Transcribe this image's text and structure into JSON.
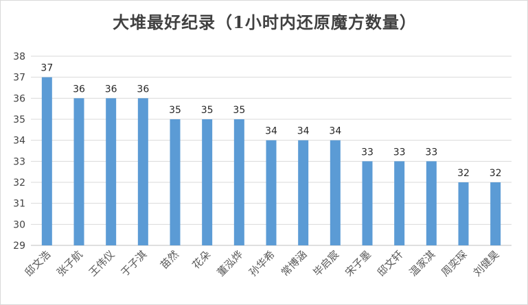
{
  "chart_data": {
    "type": "bar",
    "title": "大堆最好纪录（1小时内还原魔方数量）",
    "xlabel": "",
    "ylabel": "",
    "categories": [
      "邸文浩",
      "张子航",
      "王伟仪",
      "于子淇",
      "苗然",
      "花朵",
      "董泓烨",
      "孙华希",
      "常博涵",
      "毕启宸",
      "宋子墨",
      "邸文轩",
      "温家淇",
      "周奕琛",
      "刘健昊"
    ],
    "values": [
      37,
      36,
      36,
      36,
      35,
      35,
      35,
      34,
      34,
      34,
      33,
      33,
      33,
      32,
      32
    ],
    "ylim": [
      29,
      38
    ],
    "yticks": [
      29,
      30,
      31,
      32,
      33,
      34,
      35,
      36,
      37,
      38
    ],
    "grid": true,
    "legend": "none",
    "colors": {
      "bar": "#5b9bd5",
      "grid": "#d9d9d9",
      "axis": "#bfbfbf",
      "title": "#404040"
    }
  }
}
